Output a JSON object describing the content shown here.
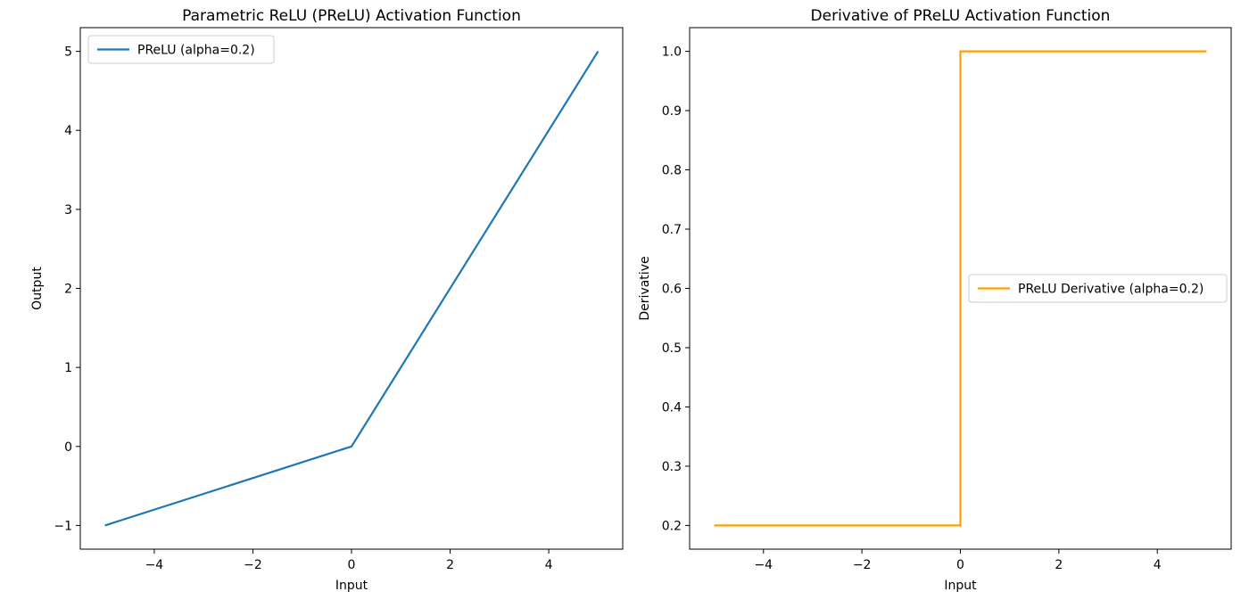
{
  "chart_data": [
    {
      "type": "line",
      "title": "Parametric ReLU (PReLU) Activation Function",
      "xlabel": "Input",
      "ylabel": "Output",
      "xlim": [
        -5.5,
        5.5
      ],
      "ylim": [
        -1.3,
        5.3
      ],
      "xticks": [
        -4,
        -2,
        0,
        2,
        4
      ],
      "xtick_labels": [
        "−4",
        "−2",
        "0",
        "2",
        "4"
      ],
      "yticks": [
        -1,
        0,
        1,
        2,
        3,
        4,
        5
      ],
      "ytick_labels": [
        "−1",
        "0",
        "1",
        "2",
        "3",
        "4",
        "5"
      ],
      "grid": false,
      "legend_position": "upper-left",
      "series": [
        {
          "name": "PReLU (alpha=0.2)",
          "color": "#1f77b4",
          "x": [
            -5,
            0,
            5
          ],
          "y": [
            -1,
            0,
            5
          ]
        }
      ]
    },
    {
      "type": "line",
      "title": "Derivative of PReLU Activation Function",
      "xlabel": "Input",
      "ylabel": "Derivative",
      "xlim": [
        -5.5,
        5.5
      ],
      "ylim": [
        0.16,
        1.04
      ],
      "xticks": [
        -4,
        -2,
        0,
        2,
        4
      ],
      "xtick_labels": [
        "−4",
        "−2",
        "0",
        "2",
        "4"
      ],
      "yticks": [
        0.2,
        0.3,
        0.4,
        0.5,
        0.6,
        0.7,
        0.8,
        0.9,
        1.0
      ],
      "ytick_labels": [
        "0.2",
        "0.3",
        "0.4",
        "0.5",
        "0.6",
        "0.7",
        "0.8",
        "0.9",
        "1.0"
      ],
      "grid": false,
      "legend_position": "center-right",
      "series": [
        {
          "name": "PReLU Derivative (alpha=0.2)",
          "color": "#ff9f00",
          "x": [
            -5,
            0,
            0,
            5
          ],
          "y": [
            0.2,
            0.2,
            1.0,
            1.0
          ]
        }
      ]
    }
  ]
}
